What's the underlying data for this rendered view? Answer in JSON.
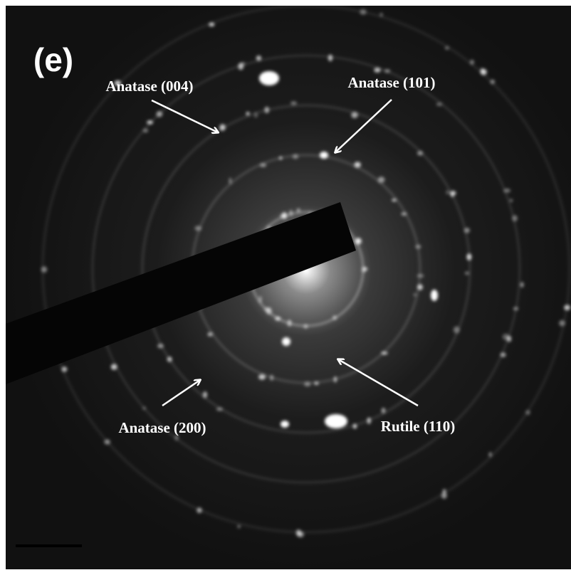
{
  "panel_label": "(e)",
  "annotations": [
    "Anatase (004)",
    "Anatase (101)",
    "Anatase (200)",
    "Rutile (110)"
  ]
}
